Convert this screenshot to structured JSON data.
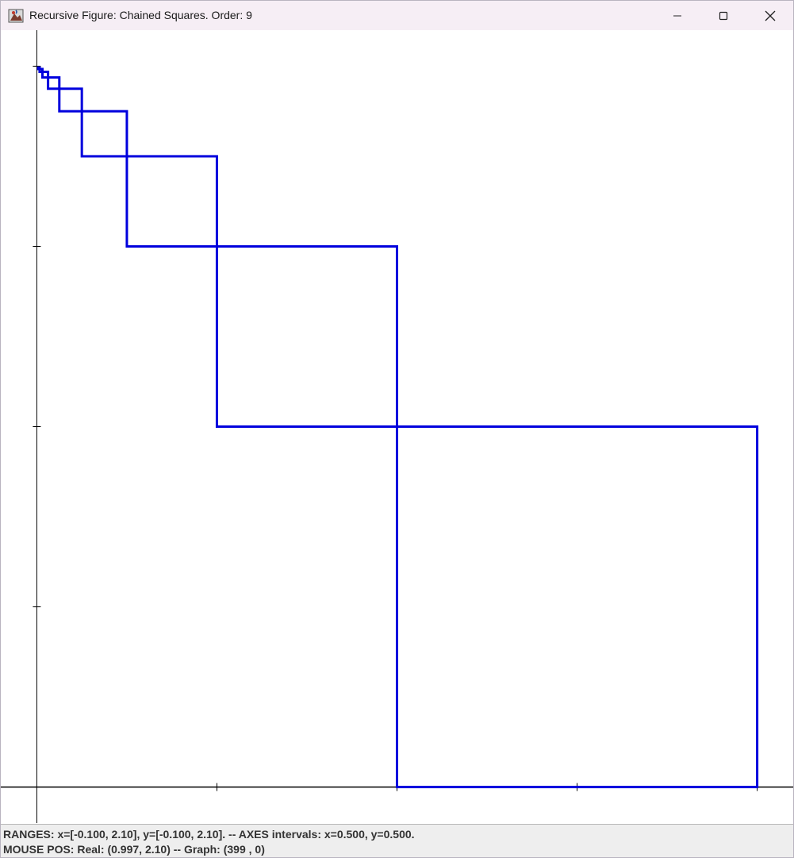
{
  "window": {
    "title": "Recursive Figure: Chained Squares. Order: 9",
    "icon": "java-app-icon",
    "controls": [
      "minimize-icon",
      "maximize-icon",
      "close-icon"
    ]
  },
  "chart_data": {
    "type": "line",
    "title": "",
    "xlabel": "",
    "ylabel": "",
    "xlim": [
      -0.1,
      2.1
    ],
    "ylim": [
      -0.1,
      2.1
    ],
    "x_interval": 0.5,
    "y_interval": 0.5,
    "grid": false,
    "stroke_color": "#0000dd",
    "axis_color": "#000000",
    "squares": [
      {
        "x": 1.0,
        "y": 0.0,
        "side": 1.0
      },
      {
        "x": 0.5,
        "y": 1.0,
        "side": 0.5
      },
      {
        "x": 0.25,
        "y": 1.5,
        "side": 0.25
      },
      {
        "x": 0.125,
        "y": 1.75,
        "side": 0.125
      },
      {
        "x": 0.0625,
        "y": 1.875,
        "side": 0.0625
      },
      {
        "x": 0.03125,
        "y": 1.9375,
        "side": 0.03125
      },
      {
        "x": 0.015625,
        "y": 1.96875,
        "side": 0.015625
      },
      {
        "x": 0.0078125,
        "y": 1.984375,
        "side": 0.0078125
      },
      {
        "x": 0.00390625,
        "y": 1.9921875,
        "side": 0.00390625
      }
    ]
  },
  "status": {
    "ranges": "RANGES: x=[-0.100, 2.10],  y=[-0.100, 2.10]. -- AXES intervals: x=0.500, y=0.500.",
    "mouse": "MOUSE POS:  Real: (0.997, 2.10)  --  Graph: (399 ,  0)"
  }
}
